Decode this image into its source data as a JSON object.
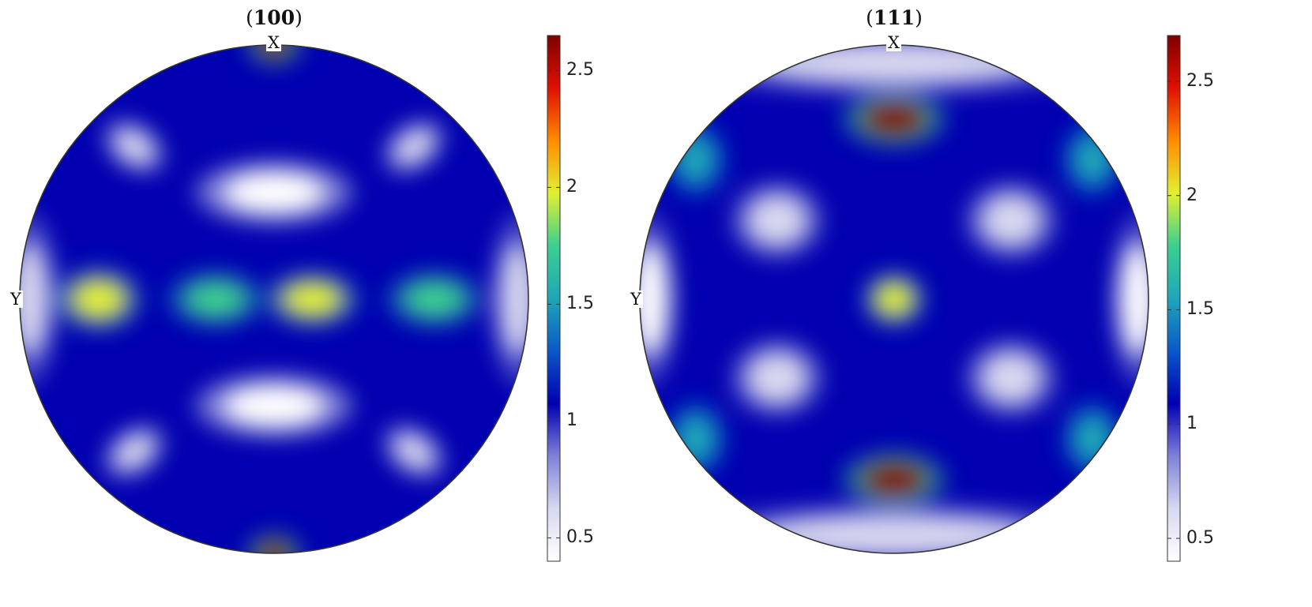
{
  "chart_data": [
    {
      "type": "heatmap",
      "title": "(100)",
      "axis_labels": {
        "top": "X",
        "left": "Y"
      },
      "colorbar": {
        "min": 0.4,
        "max": 2.65,
        "ticks": [
          "0.5",
          "1",
          "1.5",
          "2",
          "2.5"
        ]
      },
      "colormap": [
        "#ffffff",
        "#d8d8f0",
        "#7f80d8",
        "#0000b0",
        "#0a58c8",
        "#1fa6b8",
        "#3ccf90",
        "#e2f030",
        "#ff8c00",
        "#e01000",
        "#800000"
      ],
      "background_level": 1.05,
      "features": [
        {
          "x": 0.0,
          "y": 0.42,
          "rx": 0.2,
          "ry": 0.08,
          "level": 0.4
        },
        {
          "x": 0.0,
          "y": -0.42,
          "rx": 0.2,
          "ry": 0.08,
          "level": 0.4
        },
        {
          "x": -0.55,
          "y": 0.6,
          "rx": 0.09,
          "ry": 0.06,
          "level": 0.55,
          "rot": -35
        },
        {
          "x": 0.55,
          "y": 0.6,
          "rx": 0.09,
          "ry": 0.06,
          "level": 0.55,
          "rot": 35
        },
        {
          "x": -0.55,
          "y": -0.6,
          "rx": 0.09,
          "ry": 0.06,
          "level": 0.55,
          "rot": 35
        },
        {
          "x": 0.55,
          "y": -0.6,
          "rx": 0.09,
          "ry": 0.06,
          "level": 0.55,
          "rot": -35
        },
        {
          "x": -0.96,
          "y": 0.0,
          "rx": 0.07,
          "ry": 0.22,
          "level": 0.55
        },
        {
          "x": 0.96,
          "y": 0.0,
          "rx": 0.07,
          "ry": 0.22,
          "level": 0.55
        },
        {
          "x": -0.69,
          "y": 0.0,
          "rx": 0.11,
          "ry": 0.08,
          "level": 1.9
        },
        {
          "x": -0.23,
          "y": 0.0,
          "rx": 0.12,
          "ry": 0.07,
          "level": 1.8
        },
        {
          "x": 0.15,
          "y": 0.0,
          "rx": 0.12,
          "ry": 0.07,
          "level": 1.9
        },
        {
          "x": 0.63,
          "y": 0.0,
          "rx": 0.12,
          "ry": 0.07,
          "level": 1.8
        },
        {
          "x": 0.0,
          "y": 1.0,
          "rx": 0.07,
          "ry": 0.05,
          "level": 2.6
        },
        {
          "x": 0.0,
          "y": -1.0,
          "rx": 0.07,
          "ry": 0.05,
          "level": 2.6
        }
      ]
    },
    {
      "type": "heatmap",
      "title": "(111)",
      "axis_labels": {
        "top": "X",
        "left": "Y"
      },
      "colorbar": {
        "min": 0.4,
        "max": 2.7,
        "ticks": [
          "0.5",
          "1",
          "1.5",
          "2",
          "2.5"
        ]
      },
      "colormap": [
        "#ffffff",
        "#d8d8f0",
        "#7f80d8",
        "#0000b0",
        "#0a58c8",
        "#1fa6b8",
        "#3ccf90",
        "#e2f030",
        "#ff8c00",
        "#e01000",
        "#800000"
      ],
      "background_level": 1.05,
      "features": [
        {
          "x": 0.0,
          "y": 0.93,
          "rx": 0.55,
          "ry": 0.08,
          "level": 0.55
        },
        {
          "x": 0.0,
          "y": -0.93,
          "rx": 0.55,
          "ry": 0.08,
          "level": 0.55
        },
        {
          "x": 0.0,
          "y": 0.71,
          "rx": 0.13,
          "ry": 0.07,
          "level": 2.7
        },
        {
          "x": 0.0,
          "y": -0.71,
          "rx": 0.13,
          "ry": 0.07,
          "level": 2.7
        },
        {
          "x": -0.46,
          "y": 0.31,
          "rx": 0.12,
          "ry": 0.1,
          "level": 0.7
        },
        {
          "x": 0.46,
          "y": 0.31,
          "rx": 0.12,
          "ry": 0.1,
          "level": 0.7
        },
        {
          "x": -0.46,
          "y": -0.31,
          "rx": 0.12,
          "ry": 0.1,
          "level": 0.7
        },
        {
          "x": 0.46,
          "y": -0.31,
          "rx": 0.12,
          "ry": 0.1,
          "level": 0.7
        },
        {
          "x": 0.0,
          "y": 0.0,
          "rx": 0.08,
          "ry": 0.07,
          "level": 2.1
        },
        {
          "x": -0.96,
          "y": 0.0,
          "rx": 0.07,
          "ry": 0.22,
          "level": 0.5
        },
        {
          "x": 0.96,
          "y": 0.0,
          "rx": 0.07,
          "ry": 0.22,
          "level": 0.5
        },
        {
          "x": -0.78,
          "y": 0.55,
          "rx": 0.08,
          "ry": 0.1,
          "level": 1.6
        },
        {
          "x": 0.78,
          "y": 0.55,
          "rx": 0.08,
          "ry": 0.1,
          "level": 1.6
        },
        {
          "x": -0.78,
          "y": -0.55,
          "rx": 0.08,
          "ry": 0.1,
          "level": 1.6
        },
        {
          "x": 0.78,
          "y": -0.55,
          "rx": 0.08,
          "ry": 0.1,
          "level": 1.6
        }
      ]
    }
  ]
}
